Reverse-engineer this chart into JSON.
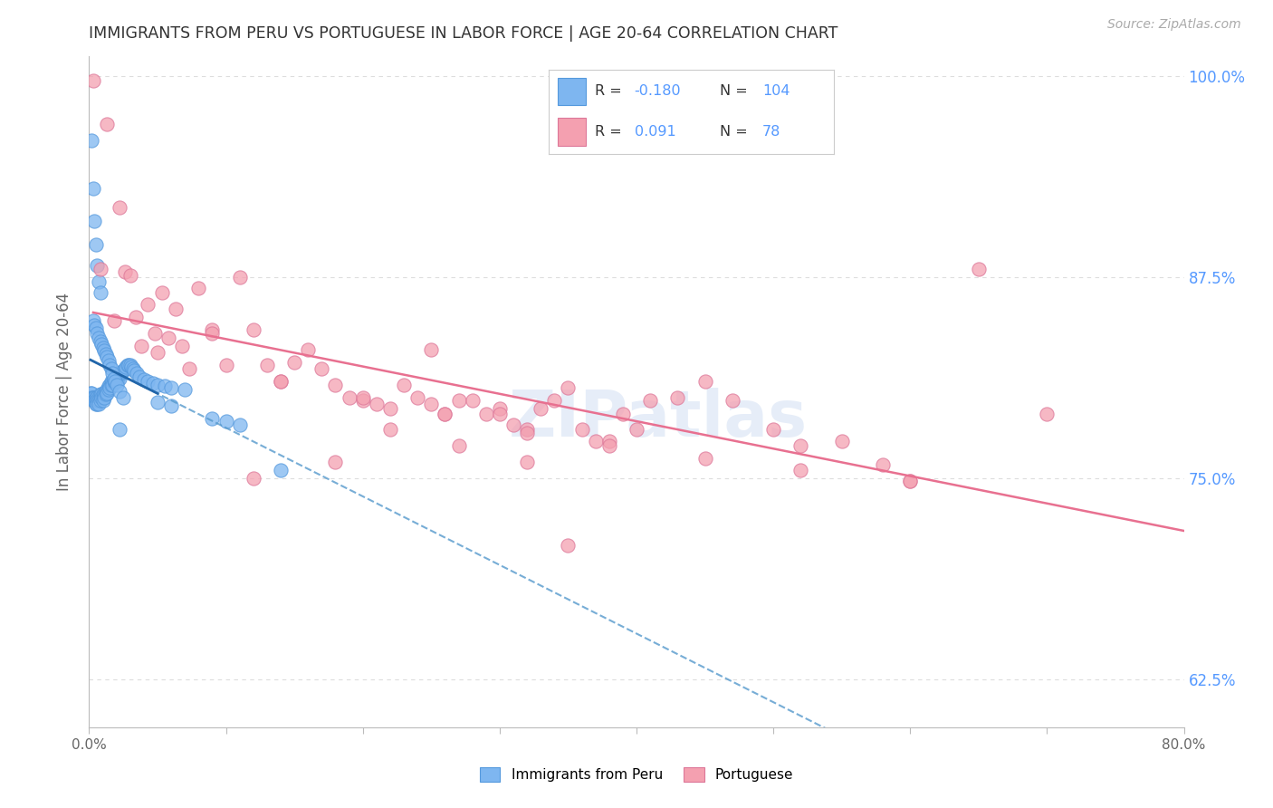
{
  "title": "IMMIGRANTS FROM PERU VS PORTUGUESE IN LABOR FORCE | AGE 20-64 CORRELATION CHART",
  "source": "Source: ZipAtlas.com",
  "ylabel": "In Labor Force | Age 20-64",
  "xlim": [
    0.0,
    0.8
  ],
  "ylim": [
    0.595,
    1.012
  ],
  "xticks": [
    0.0,
    0.1,
    0.2,
    0.3,
    0.4,
    0.5,
    0.6,
    0.7,
    0.8
  ],
  "ytick_positions": [
    0.625,
    0.75,
    0.875,
    1.0
  ],
  "ytick_labels": [
    "62.5%",
    "75.0%",
    "87.5%",
    "100.0%"
  ],
  "peru_color": "#7EB6F0",
  "peru_edge_color": "#5599DD",
  "portuguese_color": "#F4A0B0",
  "portuguese_edge_color": "#DD7799",
  "peru_R": -0.18,
  "peru_N": 104,
  "portuguese_R": 0.091,
  "portuguese_N": 78,
  "legend_label_peru": "Immigrants from Peru",
  "legend_label_portuguese": "Portuguese",
  "watermark": "ZIPatlas",
  "background_color": "#FFFFFF",
  "grid_color": "#DDDDDD",
  "axis_color": "#BBBBBB",
  "title_color": "#333333",
  "ylabel_color": "#666666",
  "ytick_color": "#5599FF",
  "xtick_color": "#666666",
  "peru_scatter_x": [
    0.001,
    0.002,
    0.002,
    0.003,
    0.003,
    0.003,
    0.004,
    0.004,
    0.004,
    0.005,
    0.005,
    0.005,
    0.006,
    0.006,
    0.006,
    0.007,
    0.007,
    0.007,
    0.008,
    0.008,
    0.008,
    0.009,
    0.009,
    0.01,
    0.01,
    0.01,
    0.011,
    0.011,
    0.012,
    0.012,
    0.013,
    0.013,
    0.014,
    0.014,
    0.015,
    0.015,
    0.016,
    0.016,
    0.017,
    0.017,
    0.018,
    0.018,
    0.019,
    0.019,
    0.02,
    0.02,
    0.021,
    0.021,
    0.022,
    0.022,
    0.023,
    0.024,
    0.025,
    0.026,
    0.027,
    0.028,
    0.029,
    0.03,
    0.031,
    0.032,
    0.033,
    0.035,
    0.037,
    0.04,
    0.043,
    0.047,
    0.05,
    0.055,
    0.06,
    0.07,
    0.003,
    0.004,
    0.005,
    0.006,
    0.007,
    0.008,
    0.009,
    0.01,
    0.011,
    0.012,
    0.013,
    0.014,
    0.015,
    0.016,
    0.017,
    0.018,
    0.019,
    0.02,
    0.022,
    0.025,
    0.002,
    0.003,
    0.004,
    0.005,
    0.006,
    0.007,
    0.008,
    0.022,
    0.1,
    0.14,
    0.09,
    0.05,
    0.06,
    0.11
  ],
  "peru_scatter_y": [
    0.803,
    0.803,
    0.8,
    0.8,
    0.8,
    0.798,
    0.8,
    0.798,
    0.798,
    0.8,
    0.798,
    0.796,
    0.8,
    0.798,
    0.796,
    0.8,
    0.798,
    0.796,
    0.802,
    0.8,
    0.798,
    0.802,
    0.8,
    0.802,
    0.8,
    0.798,
    0.802,
    0.8,
    0.804,
    0.802,
    0.805,
    0.803,
    0.807,
    0.805,
    0.808,
    0.806,
    0.81,
    0.808,
    0.81,
    0.808,
    0.812,
    0.81,
    0.812,
    0.81,
    0.812,
    0.81,
    0.813,
    0.811,
    0.814,
    0.812,
    0.815,
    0.816,
    0.817,
    0.818,
    0.819,
    0.82,
    0.82,
    0.82,
    0.819,
    0.818,
    0.817,
    0.815,
    0.813,
    0.811,
    0.81,
    0.809,
    0.808,
    0.807,
    0.806,
    0.805,
    0.848,
    0.845,
    0.843,
    0.84,
    0.837,
    0.835,
    0.833,
    0.831,
    0.829,
    0.827,
    0.825,
    0.823,
    0.82,
    0.818,
    0.815,
    0.812,
    0.81,
    0.808,
    0.804,
    0.8,
    0.96,
    0.93,
    0.91,
    0.895,
    0.882,
    0.872,
    0.865,
    0.78,
    0.785,
    0.755,
    0.787,
    0.797,
    0.795,
    0.783
  ],
  "portuguese_scatter_x": [
    0.003,
    0.008,
    0.013,
    0.018,
    0.022,
    0.026,
    0.03,
    0.034,
    0.038,
    0.043,
    0.048,
    0.053,
    0.058,
    0.063,
    0.068,
    0.073,
    0.08,
    0.09,
    0.1,
    0.11,
    0.12,
    0.13,
    0.14,
    0.15,
    0.16,
    0.17,
    0.18,
    0.19,
    0.2,
    0.21,
    0.22,
    0.23,
    0.24,
    0.25,
    0.26,
    0.27,
    0.28,
    0.29,
    0.3,
    0.31,
    0.32,
    0.33,
    0.34,
    0.35,
    0.36,
    0.37,
    0.38,
    0.39,
    0.4,
    0.41,
    0.43,
    0.45,
    0.47,
    0.5,
    0.52,
    0.55,
    0.58,
    0.6,
    0.65,
    0.7,
    0.25,
    0.3,
    0.35,
    0.12,
    0.18,
    0.22,
    0.27,
    0.32,
    0.05,
    0.09,
    0.14,
    0.2,
    0.26,
    0.32,
    0.38,
    0.45,
    0.52,
    0.6
  ],
  "portuguese_scatter_y": [
    0.997,
    0.88,
    0.97,
    0.848,
    0.918,
    0.878,
    0.876,
    0.85,
    0.832,
    0.858,
    0.84,
    0.865,
    0.837,
    0.855,
    0.832,
    0.818,
    0.868,
    0.842,
    0.82,
    0.875,
    0.842,
    0.82,
    0.81,
    0.822,
    0.83,
    0.818,
    0.808,
    0.8,
    0.798,
    0.796,
    0.793,
    0.808,
    0.8,
    0.796,
    0.79,
    0.798,
    0.798,
    0.79,
    0.793,
    0.783,
    0.78,
    0.793,
    0.798,
    0.806,
    0.78,
    0.773,
    0.773,
    0.79,
    0.78,
    0.798,
    0.8,
    0.81,
    0.798,
    0.78,
    0.77,
    0.773,
    0.758,
    0.748,
    0.88,
    0.79,
    0.83,
    0.79,
    0.708,
    0.75,
    0.76,
    0.78,
    0.77,
    0.76,
    0.828,
    0.84,
    0.81,
    0.8,
    0.79,
    0.778,
    0.77,
    0.762,
    0.755,
    0.748
  ]
}
